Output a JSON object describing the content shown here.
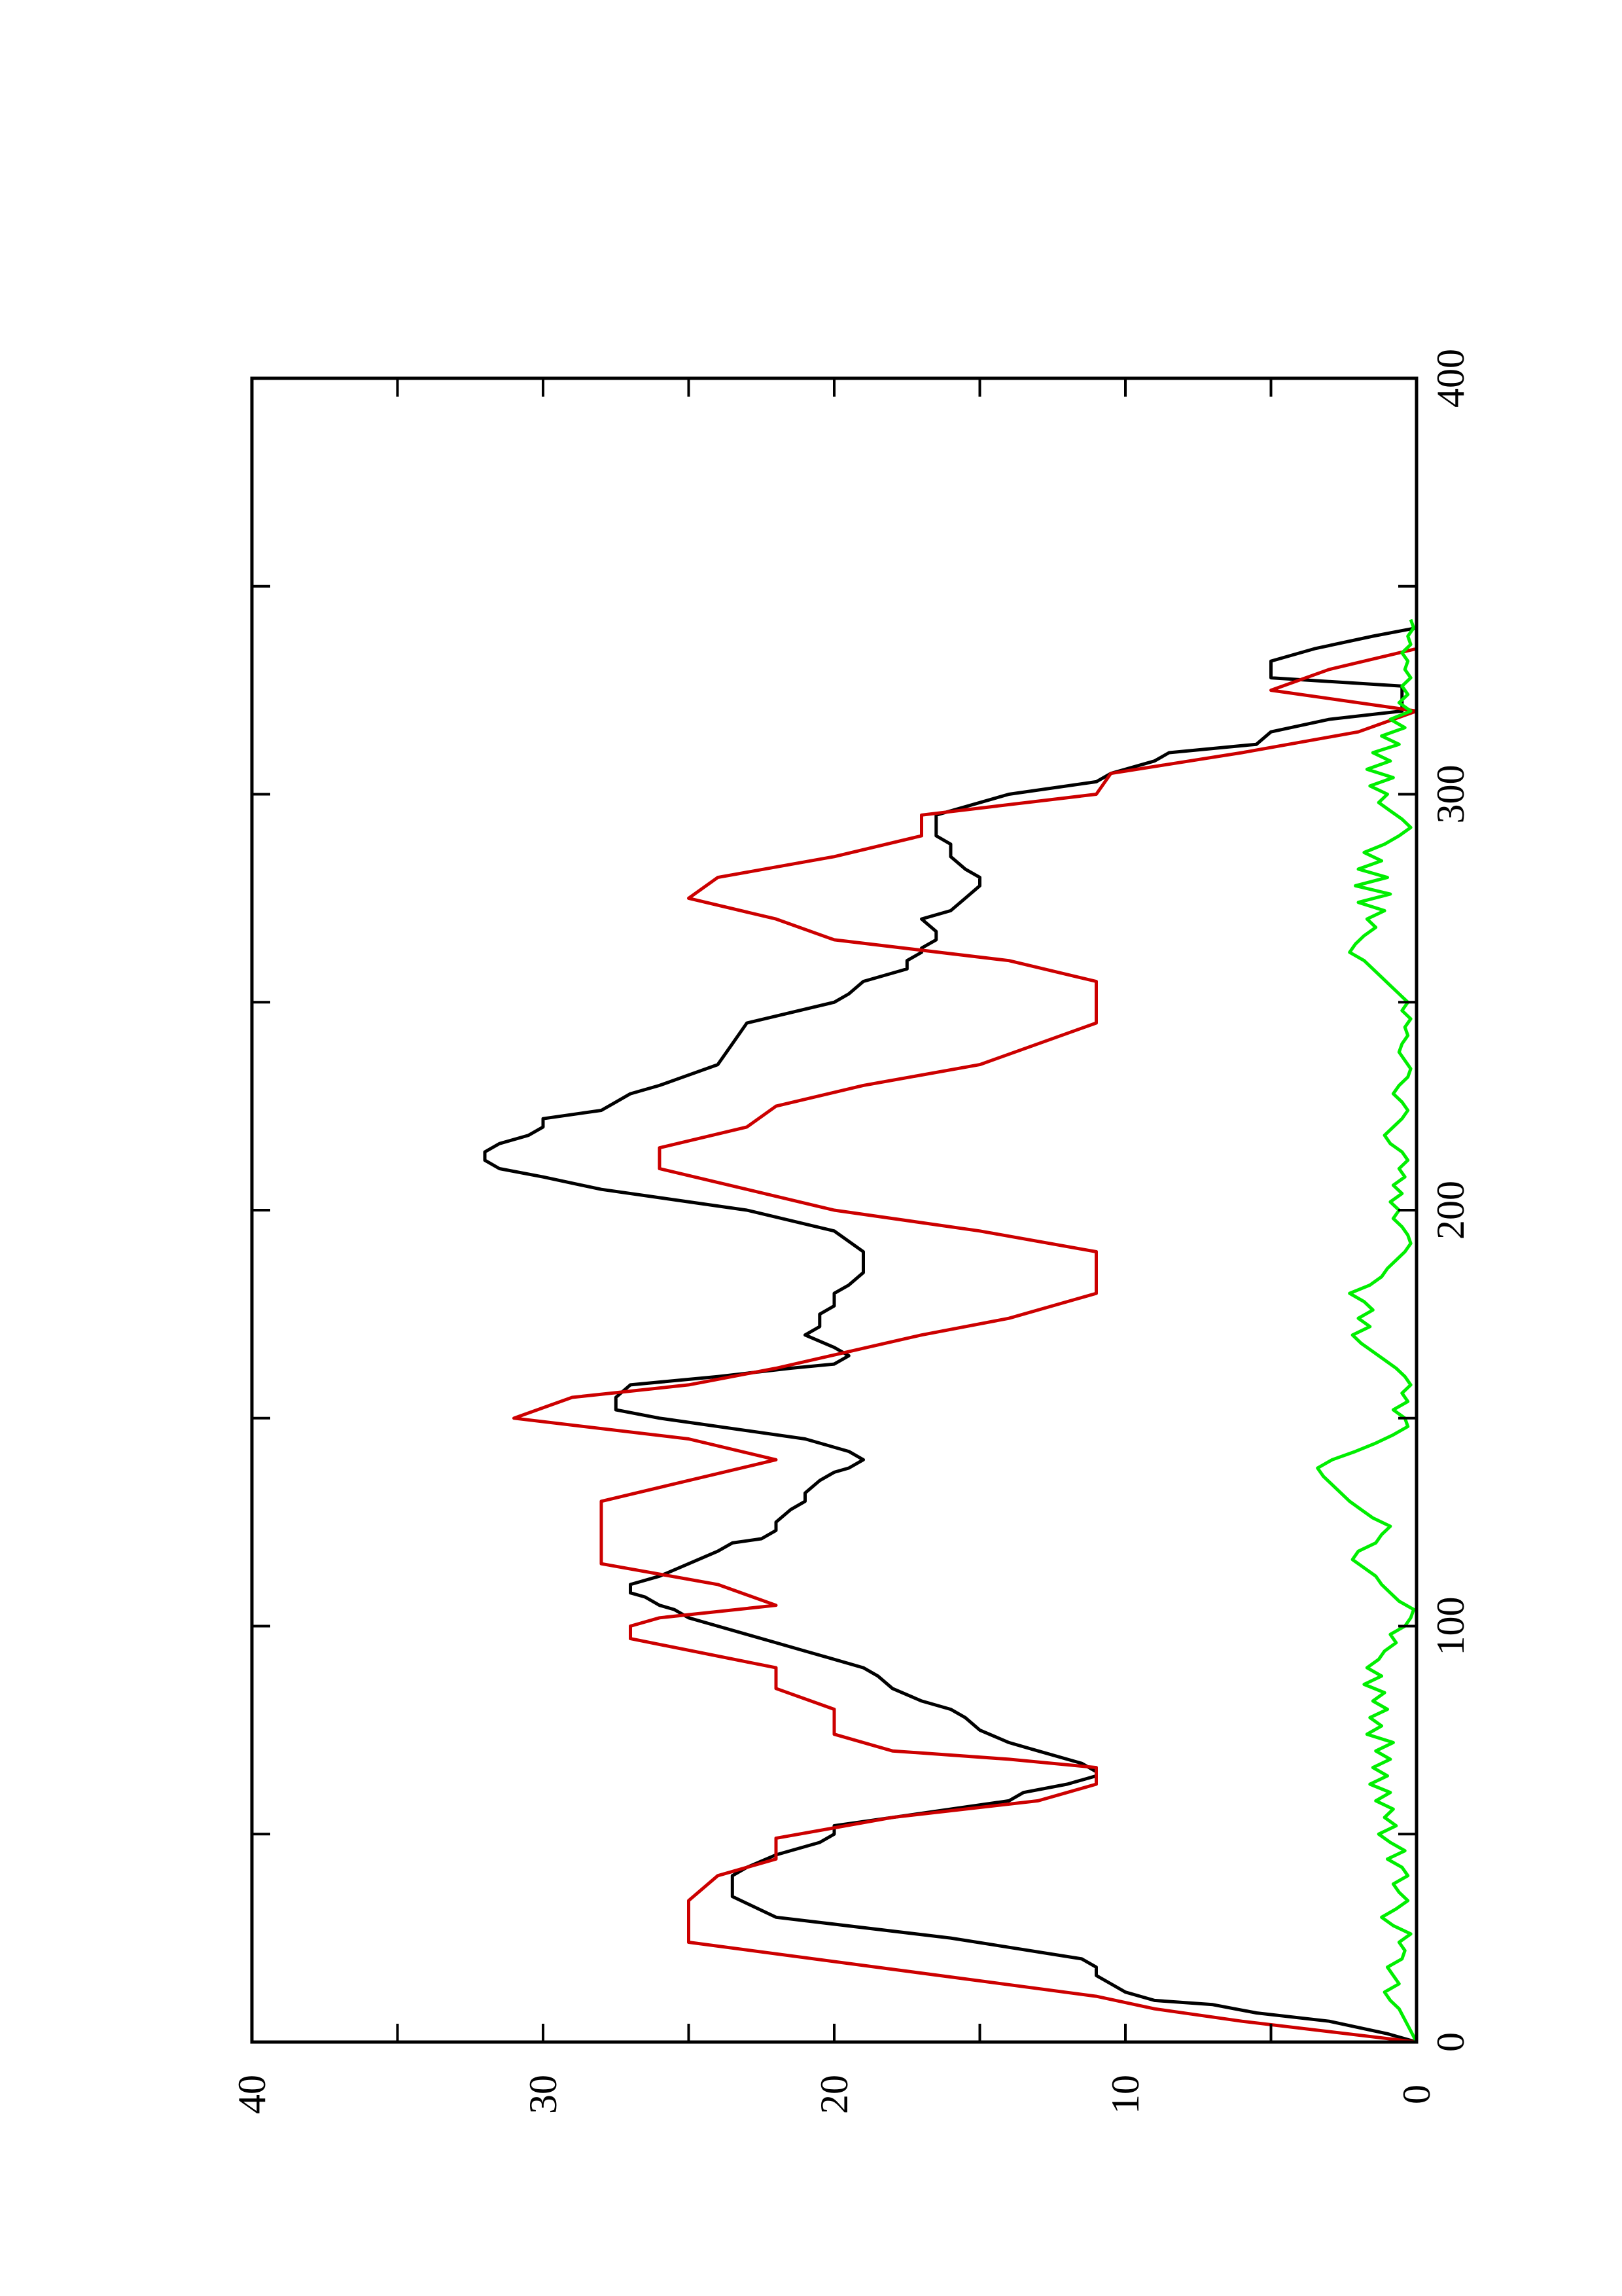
{
  "chart_data": {
    "type": "line",
    "title": "",
    "xlabel": "",
    "ylabel": "",
    "orientation": "rotated 90 degrees counter-clockwise",
    "xlim": [
      0,
      400
    ],
    "ylim": [
      0,
      40
    ],
    "x_ticks": [
      0,
      100,
      200,
      300,
      400
    ],
    "y_ticks": [
      0,
      10,
      20,
      30,
      40
    ],
    "x_tick_labels": [
      "0",
      "100",
      "200",
      "300",
      "400"
    ],
    "y_tick_labels": [
      "0",
      "10",
      "20",
      "30",
      "40"
    ],
    "x_minor_ticks": [
      50,
      150,
      250,
      350
    ],
    "y_minor_ticks": [
      5,
      15,
      25,
      35
    ],
    "grid": false,
    "legend": "none",
    "series": [
      {
        "color": "#000000",
        "x": [
          0,
          2,
          5,
          7,
          9,
          10,
          12,
          14,
          16,
          18,
          20,
          25,
          30,
          35,
          40,
          42,
          45,
          48,
          50,
          52,
          55,
          58,
          60,
          62,
          64,
          65,
          67,
          70,
          72,
          75,
          78,
          80,
          82,
          85,
          88,
          90,
          92,
          94,
          96,
          98,
          100,
          102,
          104,
          105,
          107,
          108,
          110,
          112,
          115,
          118,
          120,
          121,
          123,
          125,
          128,
          130,
          132,
          135,
          137,
          138,
          140,
          142,
          145,
          147,
          150,
          152,
          155,
          158,
          160,
          162,
          163,
          165,
          167,
          170,
          172,
          175,
          177,
          180,
          182,
          185,
          190,
          195,
          200,
          205,
          208,
          210,
          212,
          214,
          216,
          218,
          220,
          222,
          224,
          226,
          228,
          230,
          235,
          240,
          245,
          250,
          252,
          255,
          258,
          260,
          262,
          263,
          265,
          267,
          270,
          272,
          275,
          278,
          280,
          282,
          285,
          288,
          290,
          295,
          300,
          303,
          305,
          308,
          310,
          312,
          315,
          318,
          320,
          322,
          324,
          326,
          328,
          330,
          332,
          335,
          338,
          340,
          342
        ],
        "y": [
          0,
          1,
          3,
          5.5,
          7,
          9,
          10,
          10.5,
          11,
          11,
          11.5,
          16,
          22,
          23.5,
          23.5,
          23,
          22,
          20.5,
          20,
          20,
          17,
          14,
          13.5,
          12,
          11,
          11,
          11.5,
          13,
          14,
          15,
          15.5,
          16,
          17,
          18,
          18.5,
          19,
          20,
          21,
          22,
          23,
          24,
          25,
          25.5,
          26,
          26.5,
          27,
          27,
          26,
          25,
          24,
          23.5,
          22.5,
          22,
          22,
          21.5,
          21,
          21,
          20.5,
          20,
          19.5,
          19,
          19.5,
          21,
          23,
          26,
          27.5,
          27.5,
          27,
          24,
          21.5,
          20,
          19.5,
          20,
          21,
          20.5,
          20.5,
          20,
          20,
          19.5,
          19,
          19,
          20,
          23,
          28,
          30,
          31.5,
          32,
          32,
          31.5,
          30.5,
          30,
          30,
          28,
          27.5,
          27,
          26,
          24,
          23.5,
          23,
          20,
          19.5,
          19,
          17.5,
          17.5,
          17,
          17,
          16.5,
          16.5,
          17,
          16,
          15.5,
          15,
          15,
          15.5,
          16,
          16,
          16.5,
          16.5,
          14,
          11,
          10.5,
          9,
          8.5,
          5.5,
          5,
          3,
          0.5,
          0.5,
          0.5,
          0.5,
          5,
          5,
          5,
          3.5,
          1.5,
          0,
          0
        ]
      },
      {
        "color": "#cc0000",
        "x": [
          0,
          5,
          5,
          8,
          8,
          11,
          11,
          24,
          24,
          28,
          28,
          33,
          33,
          34,
          34,
          40,
          40,
          44,
          44,
          49,
          49,
          54,
          54,
          58,
          58,
          60,
          60,
          62,
          62,
          66,
          66,
          68,
          68,
          70,
          70,
          74,
          74,
          80,
          80,
          85,
          85,
          90,
          90,
          97,
          97,
          100,
          100,
          102,
          102,
          105,
          105,
          110,
          110,
          115,
          115,
          120,
          120,
          130,
          130,
          140,
          140,
          145,
          145,
          150,
          150,
          155,
          155,
          158,
          158,
          162,
          162,
          170,
          170,
          174,
          174,
          180,
          180,
          185,
          185,
          190,
          190,
          195,
          195,
          200,
          200,
          205,
          205,
          210,
          210,
          215,
          215,
          220,
          220,
          225,
          225,
          230,
          230,
          235,
          235,
          240,
          240,
          245,
          245,
          250,
          250,
          255,
          255,
          260,
          260,
          265,
          265,
          270,
          270,
          275,
          275,
          280,
          280,
          285,
          285,
          290,
          290,
          295,
          295,
          300,
          300,
          305,
          305,
          310,
          310,
          315,
          315,
          320,
          320,
          325,
          325,
          330,
          330,
          335,
          335,
          340,
          340,
          342
        ],
        "y": [
          0,
          6,
          6,
          9,
          9,
          11,
          11,
          25,
          25,
          25,
          25,
          25,
          25,
          25,
          25,
          24,
          24,
          22,
          22,
          22,
          22,
          18,
          18,
          13,
          13,
          12,
          12,
          11,
          11,
          11,
          11,
          14,
          14,
          18,
          18,
          20,
          20,
          20,
          20,
          22,
          22,
          22,
          22,
          27,
          27,
          27,
          27,
          26,
          26,
          22,
          22,
          24,
          24,
          28,
          28,
          28,
          28,
          28,
          28,
          22,
          22,
          25,
          25,
          31,
          31,
          29,
          29,
          25,
          25,
          22,
          22,
          17,
          17,
          14,
          14,
          11,
          11,
          11,
          11,
          11,
          11,
          15,
          15,
          20,
          20,
          23,
          23,
          26,
          26,
          26,
          26,
          23,
          23,
          22,
          22,
          19,
          19,
          15,
          15,
          13,
          13,
          11,
          11,
          11,
          11,
          11,
          11,
          14,
          14,
          20,
          20,
          22,
          22,
          25,
          25,
          24,
          24,
          20,
          20,
          17,
          17,
          17,
          17,
          11,
          11,
          10.5,
          10.5,
          6,
          6,
          2,
          2,
          0,
          0,
          5,
          5,
          3,
          3,
          0,
          0,
          0,
          0,
          0
        ]
      },
      {
        "color": "#00ee00",
        "x": [
          0,
          4,
          8,
          10,
          12,
          14,
          16,
          18,
          20,
          22,
          24,
          26,
          28,
          30,
          32,
          34,
          36,
          38,
          40,
          42,
          44,
          46,
          48,
          50,
          52,
          54,
          56,
          58,
          60,
          62,
          64,
          66,
          68,
          70,
          72,
          74,
          76,
          78,
          80,
          82,
          84,
          86,
          88,
          90,
          92,
          94,
          96,
          98,
          100,
          102,
          104,
          106,
          108,
          110,
          112,
          114,
          116,
          118,
          120,
          122,
          124,
          126,
          128,
          130,
          132,
          134,
          136,
          138,
          140,
          142,
          144,
          146,
          148,
          150,
          152,
          154,
          156,
          158,
          160,
          162,
          164,
          166,
          168,
          170,
          172,
          174,
          176,
          178,
          180,
          182,
          184,
          186,
          188,
          190,
          192,
          194,
          196,
          198,
          200,
          202,
          204,
          206,
          208,
          210,
          212,
          214,
          216,
          218,
          220,
          222,
          224,
          226,
          228,
          230,
          232,
          234,
          236,
          238,
          240,
          242,
          244,
          246,
          248,
          250,
          252,
          254,
          256,
          258,
          260,
          262,
          264,
          266,
          268,
          270,
          272,
          274,
          276,
          278,
          280,
          282,
          284,
          286,
          288,
          290,
          292,
          294,
          296,
          298,
          300,
          302,
          304,
          306,
          308,
          310,
          312,
          314,
          316,
          318,
          320,
          322,
          324,
          326,
          328,
          330,
          332,
          334,
          336,
          338,
          340,
          342
        ],
        "y": [
          0,
          0.3,
          0.6,
          0.9,
          1.1,
          0.6,
          0.8,
          1.0,
          0.5,
          0.4,
          0.6,
          0.2,
          0.8,
          1.2,
          0.7,
          0.3,
          0.6,
          0.8,
          0.3,
          0.5,
          1.0,
          0.4,
          0.9,
          1.3,
          0.7,
          1.1,
          0.8,
          1.4,
          0.9,
          1.6,
          1.0,
          1.5,
          0.9,
          1.4,
          0.8,
          1.7,
          1.2,
          1.6,
          1.0,
          1.5,
          1.1,
          1.8,
          1.2,
          1.7,
          1.3,
          1.1,
          0.7,
          0.9,
          0.4,
          0.2,
          0.1,
          0.6,
          0.9,
          1.2,
          1.4,
          1.8,
          2.2,
          2.0,
          1.4,
          1.2,
          0.9,
          1.5,
          1.9,
          2.3,
          2.6,
          2.9,
          3.2,
          3.4,
          2.9,
          2.1,
          1.4,
          0.8,
          0.3,
          0.4,
          0.8,
          0.3,
          0.5,
          0.2,
          0.4,
          0.7,
          1.1,
          1.5,
          1.9,
          2.2,
          1.6,
          2.0,
          1.5,
          1.8,
          2.3,
          1.6,
          1.2,
          1.0,
          0.7,
          0.4,
          0.2,
          0.3,
          0.5,
          0.8,
          0.6,
          0.9,
          0.5,
          0.8,
          0.4,
          0.6,
          0.3,
          0.5,
          0.9,
          1.1,
          0.8,
          0.5,
          0.3,
          0.5,
          0.8,
          0.6,
          0.3,
          0.2,
          0.4,
          0.6,
          0.5,
          0.3,
          0.4,
          0.2,
          0.5,
          0.3,
          0.6,
          0.9,
          1.2,
          1.5,
          1.8,
          2.3,
          2.1,
          1.8,
          1.4,
          1.7,
          1.1,
          2.0,
          0.9,
          2.1,
          1.0,
          2.0,
          1.2,
          1.8,
          1.1,
          0.6,
          0.2,
          0.5,
          0.9,
          1.3,
          1.0,
          1.6,
          0.8,
          1.7,
          0.9,
          1.5,
          0.6,
          1.2,
          0.4,
          0.9,
          0.2,
          0.6,
          0.3,
          0.5,
          0.2,
          0.4,
          0.3,
          0.5,
          0.2,
          0.3,
          0.1,
          0.2
        ]
      }
    ]
  }
}
